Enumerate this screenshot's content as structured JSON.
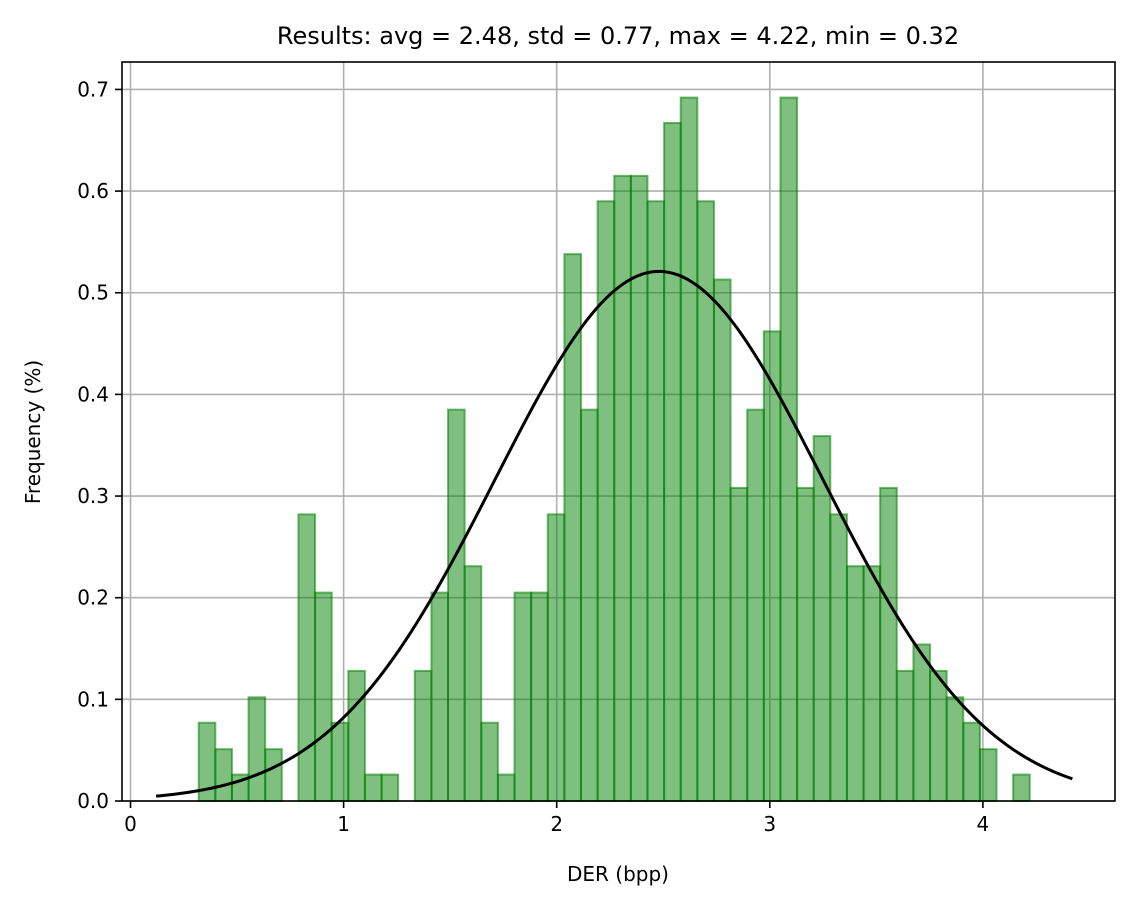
{
  "chart_data": {
    "type": "bar",
    "title": "Results: avg = 2.48,  std = 0.77, max = 4.22, min = 0.32",
    "xlabel": "DER (bpp)",
    "ylabel": "Frequency (%)",
    "xlim": [
      -0.04,
      4.62
    ],
    "ylim": [
      0,
      0.727
    ],
    "grid": true,
    "xticks": [
      0,
      1,
      2,
      3,
      4
    ],
    "yticks": [
      0.0,
      0.1,
      0.2,
      0.3,
      0.4,
      0.5,
      0.6,
      0.7
    ],
    "bin_edges": [
      0.32,
      0.398,
      0.476,
      0.554,
      0.632,
      0.71,
      0.788,
      0.866,
      0.944,
      1.022,
      1.1,
      1.178,
      1.256,
      1.334,
      1.412,
      1.49,
      1.568,
      1.646,
      1.724,
      1.802,
      1.88,
      1.958,
      2.036,
      2.114,
      2.192,
      2.27,
      2.348,
      2.426,
      2.504,
      2.582,
      2.66,
      2.738,
      2.816,
      2.894,
      2.972,
      3.05,
      3.128,
      3.206,
      3.284,
      3.362,
      3.44,
      3.518,
      3.596,
      3.674,
      3.752,
      3.83,
      3.908,
      3.986,
      4.064,
      4.142,
      4.22
    ],
    "values": [
      0.077,
      0.051,
      0.026,
      0.102,
      0.051,
      0,
      0.282,
      0.205,
      0.077,
      0.128,
      0.026,
      0.026,
      0,
      0.128,
      0.205,
      0.385,
      0.231,
      0.077,
      0.026,
      0.205,
      0.205,
      0.282,
      0.538,
      0.385,
      0.59,
      0.615,
      0.615,
      0.59,
      0.667,
      0.692,
      0.59,
      0.513,
      0.308,
      0.385,
      0.462,
      0.692,
      0.308,
      0.359,
      0.282,
      0.231,
      0.231,
      0.308,
      0.128,
      0.154,
      0.128,
      0.102,
      0.077,
      0.051,
      0,
      0.026
    ],
    "fit": {
      "type": "normal",
      "mean": 2.48,
      "std": 0.77,
      "x_range": [
        0.12,
        4.42
      ],
      "color": "#000000"
    },
    "bar_color": "#008000"
  }
}
